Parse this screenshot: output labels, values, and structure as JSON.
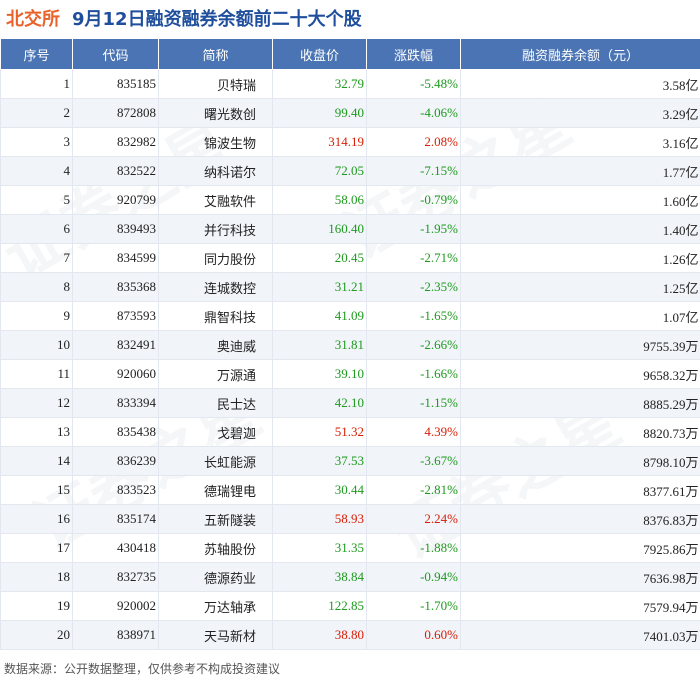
{
  "title": {
    "prefix": "北交所",
    "main": "9月12日融资融券余额前二十大个股"
  },
  "columns": [
    "序号",
    "代码",
    "简称",
    "收盘价",
    "涨跌幅",
    "融资融券余额（元）"
  ],
  "rows": [
    {
      "idx": "1",
      "code": "835185",
      "name": "贝特瑞",
      "price": "32.79",
      "change": "-5.48%",
      "balance": "3.58亿",
      "dir": "neg"
    },
    {
      "idx": "2",
      "code": "872808",
      "name": "曙光数创",
      "price": "99.40",
      "change": "-4.06%",
      "balance": "3.29亿",
      "dir": "neg"
    },
    {
      "idx": "3",
      "code": "832982",
      "name": "锦波生物",
      "price": "314.19",
      "change": "2.08%",
      "balance": "3.16亿",
      "dir": "pos"
    },
    {
      "idx": "4",
      "code": "832522",
      "name": "纳科诺尔",
      "price": "72.05",
      "change": "-7.15%",
      "balance": "1.77亿",
      "dir": "neg"
    },
    {
      "idx": "5",
      "code": "920799",
      "name": "艾融软件",
      "price": "58.06",
      "change": "-0.79%",
      "balance": "1.60亿",
      "dir": "neg"
    },
    {
      "idx": "6",
      "code": "839493",
      "name": "并行科技",
      "price": "160.40",
      "change": "-1.95%",
      "balance": "1.40亿",
      "dir": "neg"
    },
    {
      "idx": "7",
      "code": "834599",
      "name": "同力股份",
      "price": "20.45",
      "change": "-2.71%",
      "balance": "1.26亿",
      "dir": "neg"
    },
    {
      "idx": "8",
      "code": "835368",
      "name": "连城数控",
      "price": "31.21",
      "change": "-2.35%",
      "balance": "1.25亿",
      "dir": "neg"
    },
    {
      "idx": "9",
      "code": "873593",
      "name": "鼎智科技",
      "price": "41.09",
      "change": "-1.65%",
      "balance": "1.07亿",
      "dir": "neg"
    },
    {
      "idx": "10",
      "code": "832491",
      "name": "奥迪威",
      "price": "31.81",
      "change": "-2.66%",
      "balance": "9755.39万",
      "dir": "neg"
    },
    {
      "idx": "11",
      "code": "920060",
      "name": "万源通",
      "price": "39.10",
      "change": "-1.66%",
      "balance": "9658.32万",
      "dir": "neg"
    },
    {
      "idx": "12",
      "code": "833394",
      "name": "民士达",
      "price": "42.10",
      "change": "-1.15%",
      "balance": "8885.29万",
      "dir": "neg"
    },
    {
      "idx": "13",
      "code": "835438",
      "name": "戈碧迦",
      "price": "51.32",
      "change": "4.39%",
      "balance": "8820.73万",
      "dir": "pos"
    },
    {
      "idx": "14",
      "code": "836239",
      "name": "长虹能源",
      "price": "37.53",
      "change": "-3.67%",
      "balance": "8798.10万",
      "dir": "neg"
    },
    {
      "idx": "15",
      "code": "833523",
      "name": "德瑞锂电",
      "price": "30.44",
      "change": "-2.81%",
      "balance": "8377.61万",
      "dir": "neg"
    },
    {
      "idx": "16",
      "code": "835174",
      "name": "五新隧装",
      "price": "58.93",
      "change": "2.24%",
      "balance": "8376.83万",
      "dir": "pos"
    },
    {
      "idx": "17",
      "code": "430418",
      "name": "苏轴股份",
      "price": "31.35",
      "change": "-1.88%",
      "balance": "7925.86万",
      "dir": "neg"
    },
    {
      "idx": "18",
      "code": "832735",
      "name": "德源药业",
      "price": "38.84",
      "change": "-0.94%",
      "balance": "7636.98万",
      "dir": "neg"
    },
    {
      "idx": "19",
      "code": "920002",
      "name": "万达轴承",
      "price": "122.85",
      "change": "-1.70%",
      "balance": "7579.94万",
      "dir": "neg"
    },
    {
      "idx": "20",
      "code": "838971",
      "name": "天马新材",
      "price": "38.80",
      "change": "0.60%",
      "balance": "7401.03万",
      "dir": "pos"
    }
  ],
  "colors": {
    "header_bg": "#4a74b4",
    "title_prefix": "#e8622a",
    "title_main": "#1f4e9c",
    "down": "#1e9a1e",
    "up": "#d81e06",
    "stripe": "#f1f4f9"
  },
  "footer": "数据来源：公开数据整理，仅供参考不构成投资建议",
  "watermark": "证券之星"
}
